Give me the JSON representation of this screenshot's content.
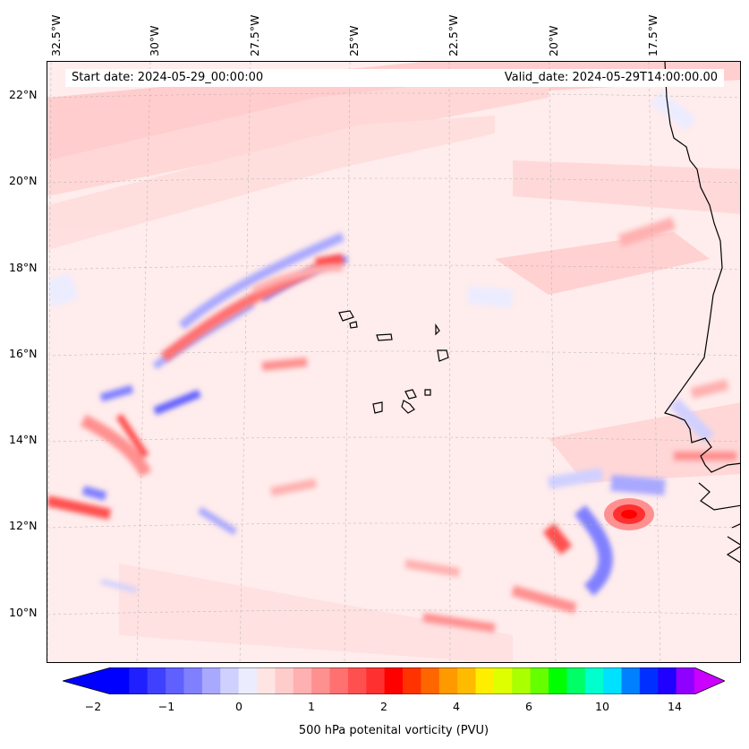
{
  "header": {
    "start_date": "Start date: 2024-05-29_00:00:00",
    "valid_date": "Valid_date: 2024-05-29T14:00:00.00"
  },
  "map": {
    "variable": "500 hPa potenital vorticity (PVU)",
    "lon_labels": [
      "32.5°W",
      "30°W",
      "27.5°W",
      "25°W",
      "22.5°W",
      "20°W",
      "17.5°W"
    ],
    "lat_labels": [
      "22°N",
      "20°N",
      "18°N",
      "16°N",
      "14°N",
      "12°N",
      "10°N"
    ],
    "gridlines": true,
    "coastline_color": "#000000"
  },
  "colorbar": {
    "tick_labels": [
      "−2",
      "−1",
      "0",
      "1",
      "2",
      "4",
      "6",
      "10",
      "14"
    ],
    "colors": [
      "#0000ff",
      "#2020ff",
      "#4040ff",
      "#6060ff",
      "#8080ff",
      "#a8a8ff",
      "#d0d0ff",
      "#ececff",
      "#ffe4e4",
      "#ffcccc",
      "#ffb0b0",
      "#ff9090",
      "#ff7070",
      "#ff5050",
      "#ff3030",
      "#ff0000",
      "#ff3300",
      "#ff6600",
      "#ff9900",
      "#ffbb00",
      "#ffee00",
      "#ddff00",
      "#aaff00",
      "#66ff00",
      "#00ff00",
      "#00ff66",
      "#00ffcc",
      "#00e0ff",
      "#0080ff",
      "#0030ff",
      "#2000ff",
      "#9000ff"
    ],
    "extend_low_color": "#0000ff",
    "extend_high_color": "#cc00ff",
    "label": "500 hPa potenital vorticity (PVU)"
  }
}
